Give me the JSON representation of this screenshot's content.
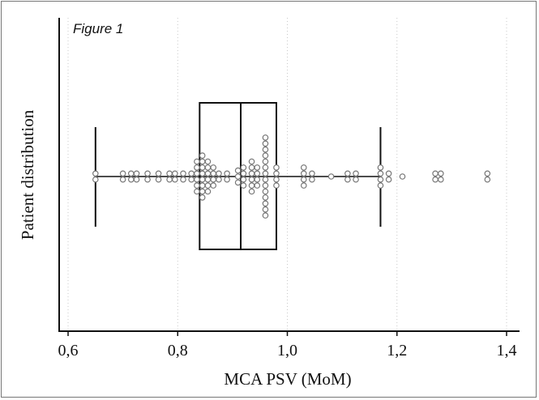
{
  "figure_label": "Figure 1",
  "chart_data": {
    "type": "box-dotplot",
    "xlabel": "MCA PSV (MoM)",
    "ylabel": "Patient distribution",
    "xlim": [
      0.58,
      1.42
    ],
    "xticks": [
      0.6,
      0.8,
      1.0,
      1.2,
      1.4
    ],
    "xtick_labels": [
      "0,6",
      "0,8",
      "1,0",
      "1,2",
      "1,4"
    ],
    "grid": "vertical dotted",
    "box": {
      "whisker_low": 0.65,
      "q1": 0.84,
      "median": 0.915,
      "q3": 0.98,
      "whisker_high": 1.17
    },
    "points": [
      {
        "x": 0.65,
        "n": 2
      },
      {
        "x": 0.7,
        "n": 2
      },
      {
        "x": 0.715,
        "n": 2
      },
      {
        "x": 0.725,
        "n": 2
      },
      {
        "x": 0.745,
        "n": 2
      },
      {
        "x": 0.765,
        "n": 2
      },
      {
        "x": 0.785,
        "n": 2
      },
      {
        "x": 0.795,
        "n": 2
      },
      {
        "x": 0.81,
        "n": 2
      },
      {
        "x": 0.825,
        "n": 2
      },
      {
        "x": 0.835,
        "n": 6
      },
      {
        "x": 0.845,
        "n": 8
      },
      {
        "x": 0.855,
        "n": 6
      },
      {
        "x": 0.865,
        "n": 4
      },
      {
        "x": 0.875,
        "n": 2
      },
      {
        "x": 0.89,
        "n": 2
      },
      {
        "x": 0.91,
        "n": 3
      },
      {
        "x": 0.92,
        "n": 4
      },
      {
        "x": 0.935,
        "n": 6
      },
      {
        "x": 0.945,
        "n": 4
      },
      {
        "x": 0.96,
        "n": 14
      },
      {
        "x": 0.98,
        "n": 4
      },
      {
        "x": 1.03,
        "n": 4
      },
      {
        "x": 1.045,
        "n": 2
      },
      {
        "x": 1.08,
        "n": 1
      },
      {
        "x": 1.11,
        "n": 2
      },
      {
        "x": 1.125,
        "n": 2
      },
      {
        "x": 1.17,
        "n": 4
      },
      {
        "x": 1.185,
        "n": 2
      },
      {
        "x": 1.21,
        "n": 1
      },
      {
        "x": 1.27,
        "n": 2
      },
      {
        "x": 1.28,
        "n": 2
      },
      {
        "x": 1.365,
        "n": 2
      }
    ]
  }
}
